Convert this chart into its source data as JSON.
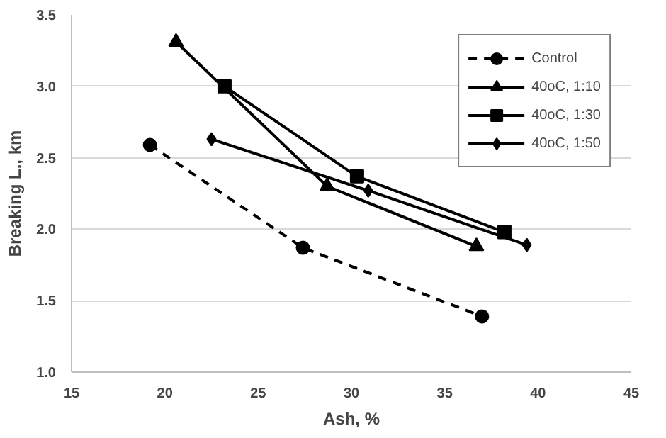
{
  "chart_data": {
    "type": "line",
    "xlabel": "Ash, %",
    "ylabel": "Breaking L., km",
    "xlim": [
      15,
      45
    ],
    "xticks": [
      15,
      20,
      25,
      30,
      35,
      40,
      45
    ],
    "ylim": [
      1.0,
      3.5
    ],
    "yticks": [
      {
        "value": 1.0,
        "label": "1.0"
      },
      {
        "value": 1.5,
        "label": "1.5"
      },
      {
        "value": 2.0,
        "label": "2.0"
      },
      {
        "value": 2.5,
        "label": "2.5"
      },
      {
        "value": 3.0,
        "label": "3.0"
      },
      {
        "value": 3.5,
        "label": "3.5"
      }
    ],
    "grid": "y",
    "legend": "top right",
    "series": [
      {
        "name": "Control",
        "color": "#000000",
        "marker": "circle",
        "line_style": "dashed",
        "x": [
          19.2,
          27.4,
          37.0
        ],
        "values": [
          2.59,
          1.87,
          1.39
        ]
      },
      {
        "name": "40oC, 1:10",
        "color": "#000000",
        "marker": "triangle",
        "line_style": "solid",
        "x": [
          20.6,
          28.7,
          36.7
        ],
        "values": [
          3.31,
          2.3,
          1.88
        ]
      },
      {
        "name": "40oC, 1:30",
        "color": "#000000",
        "marker": "square",
        "line_style": "solid",
        "x": [
          23.2,
          30.3,
          38.2
        ],
        "values": [
          3.0,
          2.37,
          1.98
        ]
      },
      {
        "name": "40oC, 1:50",
        "color": "#000000",
        "marker": "diamond",
        "line_style": "solid",
        "x": [
          22.5,
          30.9,
          39.4
        ],
        "values": [
          2.63,
          2.27,
          1.89
        ]
      }
    ]
  }
}
